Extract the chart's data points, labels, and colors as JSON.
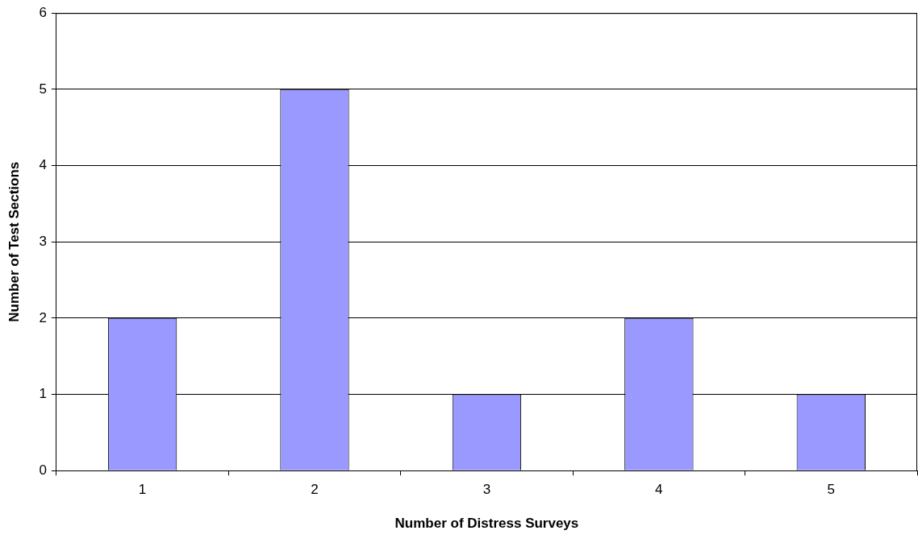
{
  "chart_data": {
    "type": "bar",
    "xlabel": "Number of Distress Surveys",
    "ylabel": "Number of Test Sections",
    "categories": [
      "1",
      "2",
      "3",
      "4",
      "5"
    ],
    "values": [
      2,
      5,
      1,
      2,
      1
    ],
    "color": "#9999ff",
    "ylim": [
      0,
      6
    ],
    "yticks": [
      0,
      1,
      2,
      3,
      4,
      5,
      6
    ],
    "grid": "y",
    "legend": false
  }
}
